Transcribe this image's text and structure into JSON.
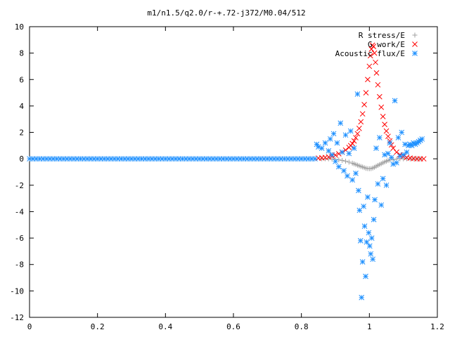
{
  "chart_data": {
    "type": "scatter",
    "title": "m1/n1.5/q2.0/r-+.72-j372/M0.04/512",
    "xlabel": "",
    "ylabel": "",
    "xlim": [
      0,
      1.2
    ],
    "ylim": [
      -12,
      10
    ],
    "xticks": [
      {
        "value": 0,
        "label": "0"
      },
      {
        "value": 0.2,
        "label": "0.2"
      },
      {
        "value": 0.4,
        "label": "0.4"
      },
      {
        "value": 0.6,
        "label": "0.6"
      },
      {
        "value": 0.8,
        "label": "0.8"
      },
      {
        "value": 1.0,
        "label": "1"
      },
      {
        "value": 1.2,
        "label": "1.2"
      }
    ],
    "yticks": [
      {
        "value": 10,
        "label": "10"
      },
      {
        "value": 8,
        "label": "8"
      },
      {
        "value": 6,
        "label": "6"
      },
      {
        "value": 4,
        "label": "4"
      },
      {
        "value": 2,
        "label": "2"
      },
      {
        "value": 0,
        "label": "0"
      },
      {
        "value": -2,
        "label": "-2"
      },
      {
        "value": -4,
        "label": "-4"
      },
      {
        "value": -6,
        "label": "-6"
      },
      {
        "value": -8,
        "label": "-8"
      },
      {
        "value": -10,
        "label": "-10"
      },
      {
        "value": -12,
        "label": "-12"
      }
    ],
    "grid": false,
    "legend_position": "top-right",
    "series": [
      {
        "name": "R stress/E",
        "marker": "plus",
        "color": "#a0a0a0",
        "points": [
          [
            0.86,
            0.0
          ],
          [
            0.87,
            0.0
          ],
          [
            0.88,
            0.0
          ],
          [
            0.89,
            -0.02
          ],
          [
            0.9,
            -0.05
          ],
          [
            0.91,
            -0.08
          ],
          [
            0.92,
            -0.12
          ],
          [
            0.93,
            -0.18
          ],
          [
            0.94,
            -0.25
          ],
          [
            0.95,
            -0.33
          ],
          [
            0.955,
            -0.38
          ],
          [
            0.96,
            -0.43
          ],
          [
            0.965,
            -0.48
          ],
          [
            0.97,
            -0.53
          ],
          [
            0.975,
            -0.58
          ],
          [
            0.98,
            -0.62
          ],
          [
            0.985,
            -0.67
          ],
          [
            0.99,
            -0.72
          ],
          [
            0.995,
            -0.74
          ],
          [
            1.0,
            -0.75
          ],
          [
            1.005,
            -0.74
          ],
          [
            1.01,
            -0.7
          ],
          [
            1.015,
            -0.64
          ],
          [
            1.02,
            -0.57
          ],
          [
            1.025,
            -0.5
          ],
          [
            1.03,
            -0.43
          ],
          [
            1.035,
            -0.37
          ],
          [
            1.04,
            -0.3
          ],
          [
            1.045,
            -0.24
          ],
          [
            1.05,
            -0.18
          ],
          [
            1.055,
            -0.13
          ],
          [
            1.06,
            -0.09
          ],
          [
            1.07,
            -0.05
          ],
          [
            1.08,
            -0.02
          ],
          [
            1.09,
            0.0
          ],
          [
            1.1,
            0.0
          ],
          [
            1.11,
            0.0
          ],
          [
            1.12,
            0.0
          ],
          [
            1.13,
            0.0
          ],
          [
            1.14,
            0.0
          ],
          [
            1.15,
            0.0
          ]
        ]
      },
      {
        "name": "G work/E",
        "marker": "cross",
        "color": "#ff0000",
        "points": [
          [
            0.85,
            0.05
          ],
          [
            0.86,
            0.07
          ],
          [
            0.87,
            0.1
          ],
          [
            0.88,
            0.14
          ],
          [
            0.89,
            0.2
          ],
          [
            0.9,
            0.28
          ],
          [
            0.91,
            0.38
          ],
          [
            0.92,
            0.5
          ],
          [
            0.93,
            0.66
          ],
          [
            0.94,
            0.86
          ],
          [
            0.945,
            1.0
          ],
          [
            0.95,
            1.15
          ],
          [
            0.955,
            1.35
          ],
          [
            0.96,
            1.6
          ],
          [
            0.965,
            1.9
          ],
          [
            0.97,
            2.3
          ],
          [
            0.975,
            2.8
          ],
          [
            0.98,
            3.4
          ],
          [
            0.985,
            4.1
          ],
          [
            0.99,
            5.0
          ],
          [
            0.995,
            6.0
          ],
          [
            1.0,
            7.0
          ],
          [
            1.003,
            7.8
          ],
          [
            1.006,
            8.3
          ],
          [
            1.009,
            8.6
          ],
          [
            1.012,
            8.5
          ],
          [
            1.015,
            8.0
          ],
          [
            1.018,
            7.3
          ],
          [
            1.021,
            6.5
          ],
          [
            1.025,
            5.6
          ],
          [
            1.03,
            4.7
          ],
          [
            1.035,
            3.9
          ],
          [
            1.04,
            3.2
          ],
          [
            1.045,
            2.6
          ],
          [
            1.05,
            2.1
          ],
          [
            1.055,
            1.7
          ],
          [
            1.06,
            1.35
          ],
          [
            1.065,
            1.05
          ],
          [
            1.07,
            0.8
          ],
          [
            1.08,
            0.5
          ],
          [
            1.09,
            0.3
          ],
          [
            1.1,
            0.18
          ],
          [
            1.11,
            0.1
          ],
          [
            1.12,
            0.05
          ],
          [
            1.13,
            0.02
          ],
          [
            1.14,
            0.0
          ],
          [
            1.15,
            0.0
          ],
          [
            1.16,
            0.0
          ]
        ]
      },
      {
        "name": "Acoustic flux/E",
        "marker": "star",
        "color": "#1e90ff",
        "points": [
          [
            0.0,
            0.0
          ],
          [
            0.01,
            0.0
          ],
          [
            0.02,
            0.0
          ],
          [
            0.03,
            0.0
          ],
          [
            0.04,
            0.0
          ],
          [
            0.05,
            0.0
          ],
          [
            0.06,
            0.0
          ],
          [
            0.07,
            0.0
          ],
          [
            0.08,
            0.0
          ],
          [
            0.09,
            0.0
          ],
          [
            0.1,
            0.0
          ],
          [
            0.11,
            0.0
          ],
          [
            0.12,
            0.0
          ],
          [
            0.13,
            0.0
          ],
          [
            0.14,
            0.0
          ],
          [
            0.15,
            0.0
          ],
          [
            0.16,
            0.0
          ],
          [
            0.17,
            0.0
          ],
          [
            0.18,
            0.0
          ],
          [
            0.19,
            0.0
          ],
          [
            0.2,
            0.0
          ],
          [
            0.21,
            0.0
          ],
          [
            0.22,
            0.0
          ],
          [
            0.23,
            0.0
          ],
          [
            0.24,
            0.0
          ],
          [
            0.25,
            0.0
          ],
          [
            0.26,
            0.0
          ],
          [
            0.27,
            0.0
          ],
          [
            0.28,
            0.0
          ],
          [
            0.29,
            0.0
          ],
          [
            0.3,
            0.0
          ],
          [
            0.31,
            0.0
          ],
          [
            0.32,
            0.0
          ],
          [
            0.33,
            0.0
          ],
          [
            0.34,
            0.0
          ],
          [
            0.35,
            0.0
          ],
          [
            0.36,
            0.0
          ],
          [
            0.37,
            0.0
          ],
          [
            0.38,
            0.0
          ],
          [
            0.39,
            0.0
          ],
          [
            0.4,
            0.0
          ],
          [
            0.41,
            0.0
          ],
          [
            0.42,
            0.0
          ],
          [
            0.43,
            0.0
          ],
          [
            0.44,
            0.0
          ],
          [
            0.45,
            0.0
          ],
          [
            0.46,
            0.0
          ],
          [
            0.47,
            0.0
          ],
          [
            0.48,
            0.0
          ],
          [
            0.49,
            0.0
          ],
          [
            0.5,
            0.0
          ],
          [
            0.51,
            0.0
          ],
          [
            0.52,
            0.0
          ],
          [
            0.53,
            0.0
          ],
          [
            0.54,
            0.0
          ],
          [
            0.55,
            0.0
          ],
          [
            0.56,
            0.0
          ],
          [
            0.57,
            0.0
          ],
          [
            0.58,
            0.0
          ],
          [
            0.59,
            0.0
          ],
          [
            0.6,
            0.0
          ],
          [
            0.61,
            0.0
          ],
          [
            0.62,
            0.0
          ],
          [
            0.63,
            0.0
          ],
          [
            0.64,
            0.0
          ],
          [
            0.65,
            0.0
          ],
          [
            0.66,
            0.0
          ],
          [
            0.67,
            0.0
          ],
          [
            0.68,
            0.0
          ],
          [
            0.69,
            0.0
          ],
          [
            0.7,
            0.0
          ],
          [
            0.71,
            0.0
          ],
          [
            0.72,
            0.0
          ],
          [
            0.73,
            0.0
          ],
          [
            0.74,
            0.0
          ],
          [
            0.75,
            0.0
          ],
          [
            0.76,
            0.0
          ],
          [
            0.77,
            0.0
          ],
          [
            0.78,
            0.0
          ],
          [
            0.79,
            0.0
          ],
          [
            0.8,
            0.0
          ],
          [
            0.81,
            0.0
          ],
          [
            0.82,
            0.0
          ],
          [
            0.83,
            0.0
          ],
          [
            0.84,
            0.0
          ],
          [
            0.845,
            1.1
          ],
          [
            0.85,
            0.9
          ],
          [
            0.86,
            0.8
          ],
          [
            0.87,
            1.2
          ],
          [
            0.88,
            0.6
          ],
          [
            0.885,
            1.5
          ],
          [
            0.89,
            0.3
          ],
          [
            0.895,
            1.9
          ],
          [
            0.9,
            -0.2
          ],
          [
            0.905,
            1.2
          ],
          [
            0.91,
            -0.6
          ],
          [
            0.915,
            2.7
          ],
          [
            0.92,
            0.5
          ],
          [
            0.925,
            -0.9
          ],
          [
            0.93,
            1.8
          ],
          [
            0.935,
            -1.3
          ],
          [
            0.94,
            0.4
          ],
          [
            0.945,
            2.1
          ],
          [
            0.95,
            -1.6
          ],
          [
            0.955,
            0.8
          ],
          [
            0.96,
            -1.1
          ],
          [
            0.965,
            4.9
          ],
          [
            0.968,
            -2.4
          ],
          [
            0.971,
            -3.9
          ],
          [
            0.974,
            -6.2
          ],
          [
            0.977,
            -10.5
          ],
          [
            0.98,
            -7.8
          ],
          [
            0.983,
            -3.6
          ],
          [
            0.986,
            -5.1
          ],
          [
            0.989,
            -8.9
          ],
          [
            0.992,
            -6.3
          ],
          [
            0.995,
            -2.9
          ],
          [
            0.998,
            -5.6
          ],
          [
            1.001,
            -6.6
          ],
          [
            1.004,
            -7.2
          ],
          [
            1.007,
            -6.0
          ],
          [
            1.01,
            -7.6
          ],
          [
            1.013,
            -4.6
          ],
          [
            1.016,
            -3.1
          ],
          [
            1.02,
            0.8
          ],
          [
            1.025,
            -1.9
          ],
          [
            1.03,
            1.6
          ],
          [
            1.035,
            -3.5
          ],
          [
            1.04,
            -1.5
          ],
          [
            1.045,
            0.3
          ],
          [
            1.05,
            -2.0
          ],
          [
            1.055,
            0.4
          ],
          [
            1.06,
            1.2
          ],
          [
            1.065,
            0.1
          ],
          [
            1.07,
            -0.4
          ],
          [
            1.075,
            4.4
          ],
          [
            1.08,
            -0.3
          ],
          [
            1.085,
            1.6
          ],
          [
            1.09,
            0.2
          ],
          [
            1.095,
            2.0
          ],
          [
            1.1,
            0.3
          ],
          [
            1.105,
            1.1
          ],
          [
            1.11,
            0.5
          ],
          [
            1.115,
            1.0
          ],
          [
            1.12,
            1.1
          ],
          [
            1.125,
            1.0
          ],
          [
            1.13,
            1.2
          ],
          [
            1.135,
            1.1
          ],
          [
            1.14,
            1.2
          ],
          [
            1.145,
            1.3
          ],
          [
            1.15,
            1.4
          ],
          [
            1.155,
            1.5
          ]
        ]
      }
    ]
  }
}
